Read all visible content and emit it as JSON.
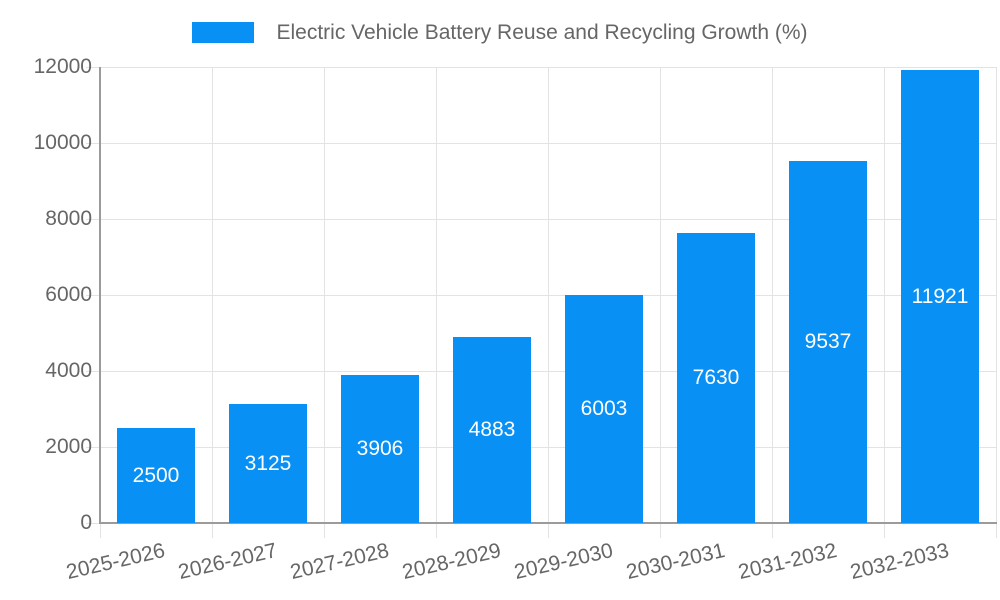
{
  "chart_data": {
    "type": "bar",
    "title": "Electric Vehicle Battery Reuse and Recycling Growth (%)",
    "categories": [
      "2025-2026",
      "2026-2027",
      "2027-2028",
      "2028-2029",
      "2029-2030",
      "2030-2031",
      "2031-2032",
      "2032-2033"
    ],
    "values": [
      2500,
      3125,
      3906,
      4883,
      6003,
      7630,
      9537,
      11921
    ],
    "xlabel": "",
    "ylabel": "",
    "ylim": [
      0,
      12000
    ],
    "ytick_step": 2000,
    "yticks": [
      0,
      2000,
      4000,
      6000,
      8000,
      10000,
      12000
    ],
    "grid": true,
    "legend_position": "top-center",
    "value_label_position": "inside-center",
    "x_label_rotation_deg": -13,
    "colors": {
      "bar": "#0990f4",
      "value_label": "#ffffff",
      "axis_text": "#666666",
      "gridline": "#e3e3e3",
      "axis_line": "#9b9b9b",
      "background": "#ffffff"
    }
  }
}
